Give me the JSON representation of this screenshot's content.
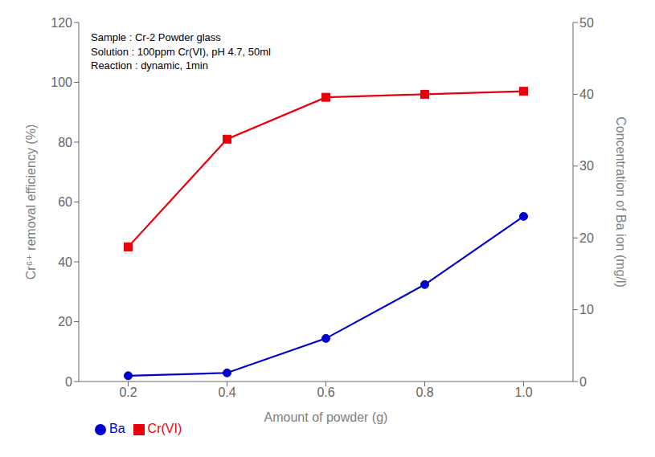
{
  "chart_data": {
    "type": "line",
    "x": [
      0.2,
      0.4,
      0.6,
      0.8,
      1.0
    ],
    "series": [
      {
        "name": "Cr(VI)",
        "color": "#e8000d",
        "values": [
          45,
          81,
          95,
          96,
          97
        ],
        "marker": "square"
      },
      {
        "name": "Ba",
        "color": "#0000cd",
        "values": [
          0.8,
          1.2,
          6.0,
          13.5,
          23.0
        ],
        "marker": "circle",
        "axis": "y2"
      }
    ],
    "xlabel": "Amount of powder (g)",
    "ylabel": "Cr⁶⁺ removal efficiency (%)",
    "y2label": "Concentration of Ba ion (mg/l)",
    "xlim": [
      0.1,
      1.1
    ],
    "xticks": [
      0.2,
      0.4,
      0.6,
      0.8,
      {
        "value": 1.0,
        "label": "1.0"
      }
    ],
    "ylim": [
      0,
      120
    ],
    "yticks": [
      0,
      20,
      40,
      60,
      80,
      100,
      120
    ],
    "y2lim": [
      0,
      50
    ],
    "y2ticks": [
      0,
      10,
      20,
      30,
      40,
      50
    ],
    "annotation": "Sample : Cr-2 Powder glass\nSolution : 100ppm Cr(VI), pH 4.7, 50ml\nReaction : dynamic, 1min",
    "legend": "lower left",
    "grid": false
  }
}
